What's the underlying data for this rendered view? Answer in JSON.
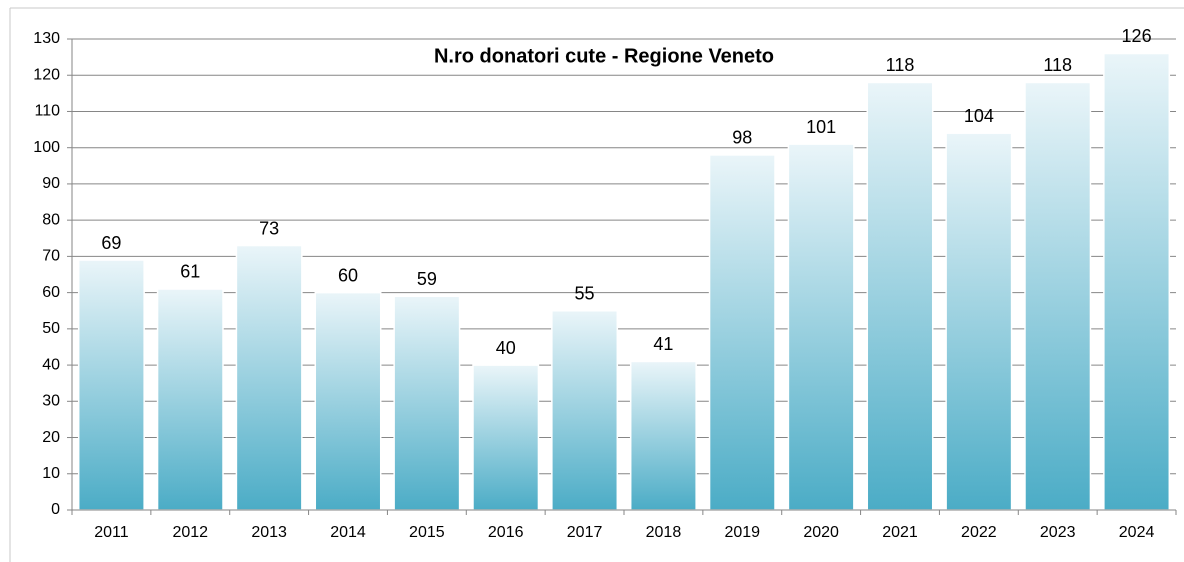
{
  "chart_data": {
    "type": "bar",
    "title": "N.ro donatori cute  - Regione Veneto",
    "categories": [
      "2011",
      "2012",
      "2013",
      "2014",
      "2015",
      "2016",
      "2017",
      "2018",
      "2019",
      "2020",
      "2021",
      "2022",
      "2023",
      "2024"
    ],
    "values": [
      69,
      61,
      73,
      60,
      59,
      40,
      55,
      41,
      98,
      101,
      118,
      104,
      118,
      126
    ],
    "color": "#4bacc6",
    "ylim": [
      0,
      130
    ],
    "yticks": [
      0,
      10,
      20,
      30,
      40,
      50,
      60,
      70,
      80,
      90,
      100,
      110,
      120,
      130
    ],
    "grid": true
  }
}
